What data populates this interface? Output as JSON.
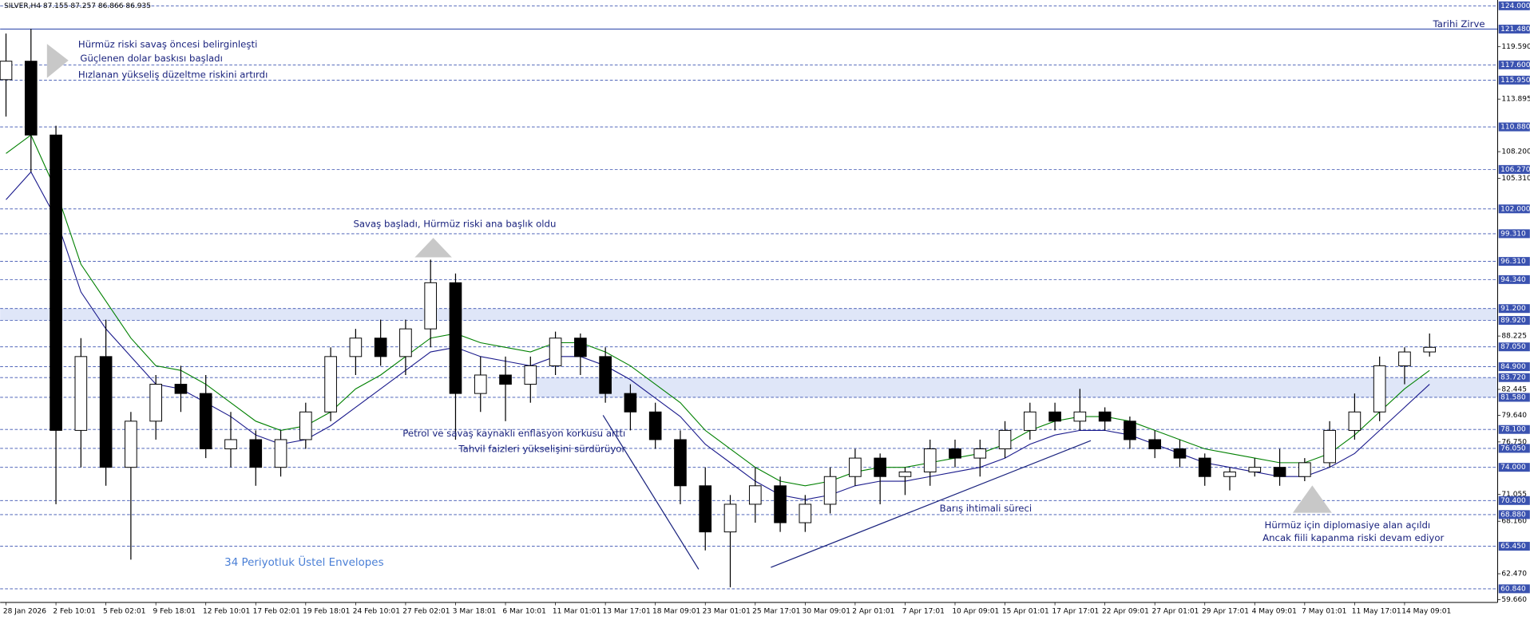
{
  "header": "SILVER,H4  87.155 87.257 86.866 86.935",
  "chart_data": {
    "type": "candlestick",
    "categories": [
      "28 Jan 2026",
      null,
      "2 Feb 10:01",
      null,
      "5 Feb 02:01",
      null,
      "9 Feb 18:01",
      null,
      "12 Feb 10:01",
      null,
      "17 Feb 02:01",
      null,
      "19 Feb 18:01",
      null,
      "24 Feb 10:01",
      null,
      "27 Feb 02:01",
      null,
      "3 Mar 18:01",
      null,
      "6 Mar 10:01",
      null,
      "11 Mar 01:01",
      null,
      "13 Mar 17:01",
      null,
      "18 Mar 09:01",
      null,
      "23 Mar 01:01",
      null,
      "25 Mar 17:01",
      null,
      "30 Mar 09:01",
      null,
      "2 Apr 01:01",
      null,
      "7 Apr 17:01",
      null,
      "10 Apr 09:01",
      null,
      "15 Apr 01:01",
      null,
      "17 Apr 17:01",
      null,
      "22 Apr 09:01",
      null,
      "27 Apr 01:01",
      null,
      "29 Apr 17:01",
      null,
      "4 May 09:01",
      null,
      "7 May 01:01",
      null,
      "11 May 17:01",
      null,
      "14 May 09:01",
      null
    ],
    "open": [
      116,
      118,
      110,
      78,
      86,
      74,
      79,
      83,
      82,
      76,
      77,
      74,
      77,
      80,
      86,
      88,
      86,
      89,
      94,
      82,
      84,
      83,
      85,
      88,
      86,
      82,
      80,
      77,
      72,
      67,
      70,
      72,
      68,
      70,
      73,
      75,
      73,
      73.5,
      76,
      75,
      76,
      78,
      80,
      79,
      80,
      79,
      77,
      76,
      75,
      73,
      73.5,
      74,
      73,
      74.5,
      78,
      80,
      85,
      86.5
    ],
    "high": [
      121,
      121.5,
      111,
      88,
      90,
      80,
      84,
      85,
      84,
      80,
      78,
      78,
      81,
      87,
      89,
      90,
      90,
      96.5,
      95,
      86,
      86,
      86,
      88.7,
      88.5,
      87,
      83,
      81,
      78,
      74,
      71,
      74,
      73,
      71,
      74,
      76,
      75.5,
      74,
      77,
      77,
      77,
      79,
      81,
      81,
      82.5,
      80.5,
      79.5,
      78,
      77,
      75.5,
      74,
      75,
      76,
      75,
      79,
      82,
      86,
      87,
      88.5
    ],
    "low": [
      112,
      106,
      70,
      74,
      72,
      64,
      77,
      80,
      75,
      74,
      72,
      73,
      76,
      79,
      84,
      85,
      84,
      87,
      77,
      80,
      79,
      81,
      84,
      84,
      81,
      78,
      76,
      70,
      65,
      61,
      68,
      67,
      67,
      69,
      72,
      70,
      71,
      72,
      74,
      73,
      75,
      77,
      78,
      78,
      78,
      76,
      75,
      74,
      72,
      71.5,
      73,
      72,
      72.5,
      74,
      77,
      79,
      83,
      86
    ],
    "close": [
      118,
      110,
      78,
      86,
      74,
      79,
      83,
      82,
      76,
      77,
      74,
      77,
      80,
      86,
      88,
      86,
      89,
      94,
      82,
      84,
      83,
      85,
      88,
      86,
      82,
      80,
      77,
      72,
      67,
      70,
      72,
      68,
      70,
      73,
      75,
      73,
      73.5,
      76,
      75,
      76,
      78,
      80,
      79,
      80,
      79,
      77,
      76,
      75,
      73,
      73.5,
      74,
      73,
      74.5,
      78,
      80,
      85,
      86.5,
      87
    ],
    "lines": [
      {
        "color": "#008000",
        "values": [
          108,
          110,
          104,
          96,
          92,
          88,
          85,
          84.5,
          83,
          81,
          79,
          78,
          78.5,
          80,
          82.5,
          84,
          86,
          88,
          88.5,
          87.5,
          87,
          86.5,
          87.5,
          87.5,
          86.5,
          85,
          83,
          81,
          78,
          76,
          74,
          72.5,
          72,
          72.5,
          73.5,
          74,
          74,
          74.5,
          75,
          75.5,
          76.5,
          78,
          79,
          79.5,
          79.5,
          79,
          78,
          77,
          76,
          75.5,
          75,
          74.5,
          74.5,
          75.5,
          77.5,
          80,
          82.5,
          84.5
        ]
      },
      {
        "color": "#1a1a8c",
        "values": [
          103,
          106,
          101,
          93,
          89,
          86,
          83,
          82.5,
          81,
          79.5,
          77.5,
          76.5,
          77,
          78.5,
          80.5,
          82.5,
          84.5,
          86.5,
          87,
          86,
          85.5,
          85,
          86,
          86,
          85,
          83.5,
          81.5,
          79.5,
          76.5,
          74.5,
          72.5,
          71,
          70.5,
          71,
          72,
          72.5,
          72.5,
          73,
          73.5,
          74,
          75,
          76.5,
          77.5,
          78,
          78,
          77.5,
          76.5,
          75.5,
          74.5,
          74,
          73.5,
          73,
          73,
          74,
          75.5,
          78,
          80.5,
          83
        ]
      }
    ],
    "ylim": [
      59.36,
      124.63
    ],
    "yticks": [
      {
        "value": 119.59,
        "label": "119.590"
      },
      {
        "value": 113.895,
        "label": "113.895"
      },
      {
        "value": 108.2,
        "label": "108.200"
      },
      {
        "value": 105.31,
        "label": "105.310"
      },
      {
        "value": 88.225,
        "label": "88.225"
      },
      {
        "value": 82.445,
        "label": "82.445"
      },
      {
        "value": 79.64,
        "label": "79.640"
      },
      {
        "value": 76.75,
        "label": "76.750"
      },
      {
        "value": 71.055,
        "label": "71.055"
      },
      {
        "value": 68.16,
        "label": "68.160"
      },
      {
        "value": 62.47,
        "label": "62.470"
      },
      {
        "value": 59.66,
        "label": "59.660"
      }
    ],
    "levels": [
      {
        "value": 124,
        "label": "124.000"
      },
      {
        "value": 121.48,
        "label": "121.480"
      },
      {
        "value": 117.6,
        "label": "117.600"
      },
      {
        "value": 115.95,
        "label": "115.950"
      },
      {
        "value": 110.88,
        "label": "110.880"
      },
      {
        "value": 106.27,
        "label": "106.270"
      },
      {
        "value": 102,
        "label": "102.000"
      },
      {
        "value": 99.31,
        "label": "99.310"
      },
      {
        "value": 96.31,
        "label": "96.310"
      },
      {
        "value": 94.34,
        "label": "94.340"
      },
      {
        "value": 91.2,
        "label": "91.200"
      },
      {
        "value": 89.92,
        "label": "89.920"
      },
      {
        "value": 87.05,
        "label": "87.050"
      },
      {
        "value": 84.9,
        "label": "84.900"
      },
      {
        "value": 83.72,
        "label": "83.720"
      },
      {
        "value": 81.58,
        "label": "81.580"
      },
      {
        "value": 78.1,
        "label": "78.100"
      },
      {
        "value": 76.05,
        "label": "76.050"
      },
      {
        "value": 74,
        "label": "74.000"
      },
      {
        "value": 70.4,
        "label": "70.400"
      },
      {
        "value": 68.88,
        "label": "68.880"
      },
      {
        "value": 65.45,
        "label": "65.450"
      },
      {
        "value": 60.84,
        "label": "60.840"
      }
    ],
    "zones": [
      [
        89.92,
        91.2
      ],
      [
        81.58,
        83.72
      ]
    ],
    "level_color": "#3a52b0",
    "annotations": [
      "Tarihi Zirve",
      "Hürmüz riski savaş öncesi belirginleşti",
      "Güçlenen dolar baskısı başladı",
      "Hızlanan yükseliş düzeltme riskini artırdı",
      "Savaş başladı, Hürmüz riski ana başlık oldu",
      "Petrol ve savaş kaynaklı enflasyon korkusu arttı",
      "Tahvil faizleri yükselişini sürdürüyor",
      "Barış ihtimali süreci",
      "Hürmüz için diplomasiye alan açıldı",
      "Ancak fiili kapanma riski devam ediyor",
      "34 Periyotluk Üstel Envelopes"
    ]
  }
}
